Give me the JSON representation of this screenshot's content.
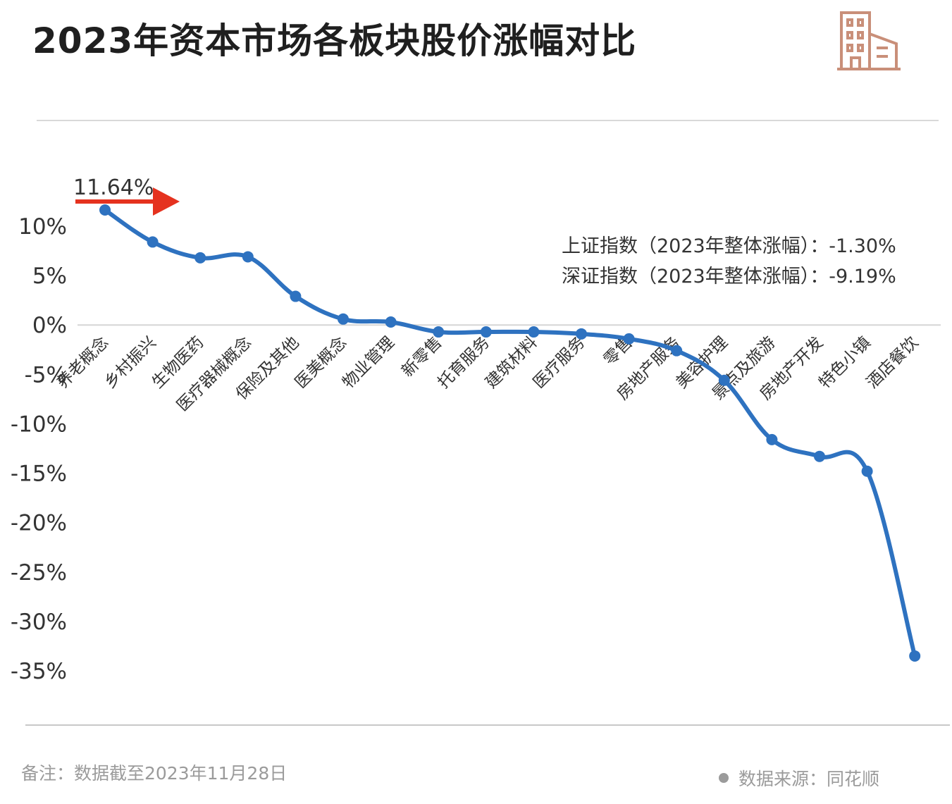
{
  "title": "2023年资本市场各板块股价涨幅对比",
  "logo_icon": "building-icon",
  "stats": [
    "上证指数（2023年整体涨幅）：-1.30%",
    "深证指数（2023年整体涨幅）：-9.19%"
  ],
  "note": "备注：数据截至2023年11月28日",
  "source": "数据来源：同花顺",
  "colors": {
    "line": "#2e72c0",
    "arrow": "#e5321f",
    "logo": "#c98f79"
  },
  "chart_data": {
    "type": "line",
    "categories": [
      "养老概念",
      "乡村振兴",
      "生物医药",
      "医疗器械概念",
      "保险及其他",
      "医美概念",
      "物业管理",
      "新零售",
      "托育服务",
      "建筑材料",
      "医疗服务",
      "零售",
      "房地产服务",
      "美容护理",
      "景点及旅游",
      "房地产开发",
      "特色小镇",
      "酒店餐饮"
    ],
    "values": [
      11.64,
      8.4,
      6.8,
      6.9,
      2.9,
      0.6,
      0.3,
      -0.7,
      -0.7,
      -0.7,
      -0.9,
      -1.4,
      -2.6,
      -5.6,
      -11.6,
      -13.3,
      -14.8,
      -33.5
    ],
    "annotation": {
      "text": "11.64%",
      "index": 0
    },
    "yticks": [
      10,
      5,
      0,
      -5,
      -10,
      -15,
      -20,
      -25,
      -30,
      -35
    ],
    "ytick_labels": [
      "10%",
      "5%",
      "0%",
      "-5%",
      "-10%",
      "-15%",
      "-20%",
      "-25%",
      "-30%",
      "-35%"
    ],
    "ylim": [
      -35,
      10
    ],
    "grid": false
  }
}
